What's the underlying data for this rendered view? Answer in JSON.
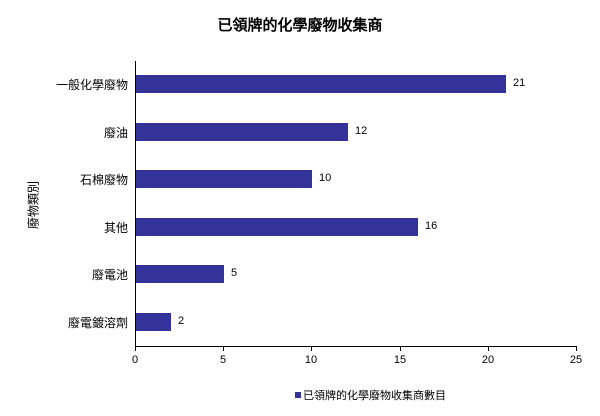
{
  "chart_data": {
    "type": "bar",
    "orientation": "horizontal",
    "title": "已領牌的化學廢物收集商",
    "xlabel": "",
    "ylabel": "廢物類別",
    "categories": [
      "一般化學廢物",
      "廢油",
      "石棉廢物",
      "其他",
      "廢電池",
      "廢電鍍溶劑"
    ],
    "series": [
      {
        "name": "已領牌的化學廢物收集商數目",
        "values": [
          21,
          12,
          10,
          16,
          5,
          2
        ],
        "color": "#333399"
      }
    ],
    "xlim": [
      0,
      25
    ],
    "xticks": [
      "0",
      "5",
      "10",
      "15",
      "20",
      "25"
    ],
    "grid": false,
    "legend_position": "bottom",
    "data_labels": true
  },
  "title": "已領牌的化學廢物收集商",
  "y_axis_title": "廢物類別",
  "legend": {
    "label": "已領牌的化學廢物收集商數目",
    "color": "#333399"
  },
  "bars": [
    {
      "label": "一般化學廢物",
      "value": "21"
    },
    {
      "label": "廢油",
      "value": "12"
    },
    {
      "label": "石棉廢物",
      "value": "10"
    },
    {
      "label": "其他",
      "value": "16"
    },
    {
      "label": "廢電池",
      "value": "5"
    },
    {
      "label": "廢電鍍溶劑",
      "value": "2"
    }
  ],
  "x_ticks": [
    "0",
    "5",
    "10",
    "15",
    "20",
    "25"
  ]
}
